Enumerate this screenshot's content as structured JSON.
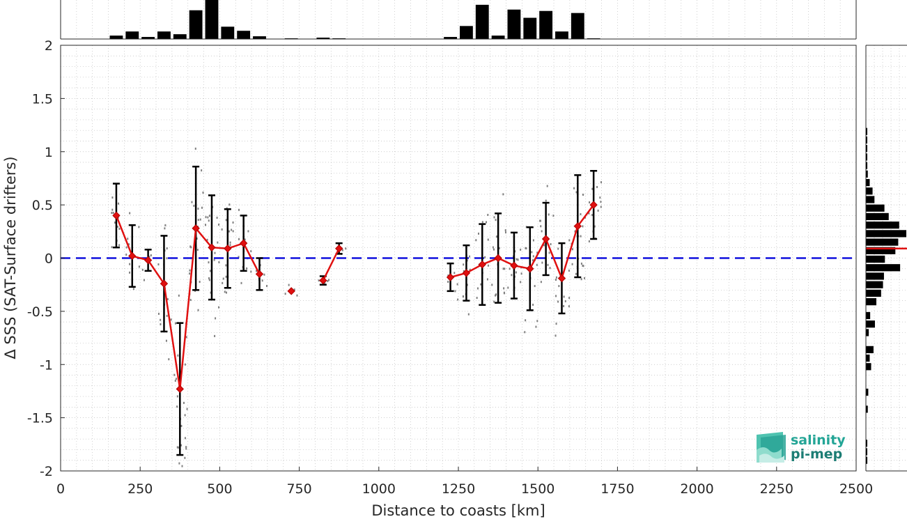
{
  "chart_data": {
    "type": "line",
    "xlabel": "Distance to coasts [km]",
    "ylabel": "Δ SSS (SAT-Surface drifters)",
    "xlim": [
      0,
      2500
    ],
    "ylim": [
      -2,
      2
    ],
    "xticks": [
      0,
      250,
      500,
      750,
      1000,
      1250,
      1500,
      1750,
      2000,
      2250,
      2500
    ],
    "yticks": [
      -2,
      -1.5,
      -1,
      -0.5,
      0,
      0.5,
      1,
      1.5,
      2
    ],
    "grid": true,
    "zero_line": {
      "y": 0,
      "color": "#1010dd",
      "style": "dashed"
    },
    "series": [
      {
        "type": "binned-mean-with-errorbars",
        "color": "#e01010",
        "marker": "diamond",
        "segments": [
          {
            "x": [
              175,
              225,
              275,
              325,
              375,
              425,
              475,
              525,
              575,
              625
            ],
            "y": [
              0.4,
              0.02,
              -0.02,
              -0.24,
              -1.23,
              0.28,
              0.1,
              0.09,
              0.14,
              -0.15
            ],
            "err": [
              0.3,
              0.29,
              0.1,
              0.45,
              0.62,
              0.58,
              0.49,
              0.37,
              0.26,
              0.15
            ]
          },
          {
            "x": [
              725
            ],
            "y": [
              -0.31
            ],
            "err": [
              0.0
            ]
          },
          {
            "x": [
              825,
              875
            ],
            "y": [
              -0.21,
              0.09
            ],
            "err": [
              0.04,
              0.05
            ]
          },
          {
            "x": [
              1225,
              1275,
              1325,
              1375,
              1425,
              1475,
              1525,
              1575,
              1625,
              1675
            ],
            "y": [
              -0.18,
              -0.14,
              -0.06,
              0.0,
              -0.07,
              -0.1,
              0.18,
              -0.19,
              0.3,
              0.5
            ],
            "err": [
              0.13,
              0.26,
              0.38,
              0.42,
              0.31,
              0.39,
              0.34,
              0.33,
              0.48,
              0.32
            ]
          }
        ]
      }
    ],
    "top_histogram": {
      "bin_width": 50,
      "bins": [
        {
          "x": 175,
          "count": 5
        },
        {
          "x": 225,
          "count": 11
        },
        {
          "x": 275,
          "count": 3
        },
        {
          "x": 325,
          "count": 11
        },
        {
          "x": 375,
          "count": 7
        },
        {
          "x": 425,
          "count": 42
        },
        {
          "x": 475,
          "count": 57
        },
        {
          "x": 525,
          "count": 18
        },
        {
          "x": 575,
          "count": 12
        },
        {
          "x": 625,
          "count": 4
        },
        {
          "x": 725,
          "count": 1
        },
        {
          "x": 825,
          "count": 2
        },
        {
          "x": 875,
          "count": 1
        },
        {
          "x": 1225,
          "count": 3
        },
        {
          "x": 1275,
          "count": 19
        },
        {
          "x": 1325,
          "count": 50
        },
        {
          "x": 1375,
          "count": 5
        },
        {
          "x": 1425,
          "count": 43
        },
        {
          "x": 1475,
          "count": 31
        },
        {
          "x": 1525,
          "count": 41
        },
        {
          "x": 1575,
          "count": 11
        },
        {
          "x": 1625,
          "count": 38
        },
        {
          "x": 1675,
          "count": 1
        }
      ]
    },
    "right_histogram": {
      "bin_width": 0.08,
      "bins": [
        {
          "y": -1.9,
          "count": 3
        },
        {
          "y": -1.82,
          "count": 2
        },
        {
          "y": -1.74,
          "count": 1
        },
        {
          "y": -1.42,
          "count": 4
        },
        {
          "y": -1.26,
          "count": 5
        },
        {
          "y": -1.02,
          "count": 11
        },
        {
          "y": -0.94,
          "count": 8
        },
        {
          "y": -0.86,
          "count": 16
        },
        {
          "y": -0.7,
          "count": 6
        },
        {
          "y": -0.62,
          "count": 19
        },
        {
          "y": -0.54,
          "count": 9
        },
        {
          "y": -0.41,
          "count": 22
        },
        {
          "y": -0.33,
          "count": 32
        },
        {
          "y": -0.25,
          "count": 36
        },
        {
          "y": -0.17,
          "count": 38
        },
        {
          "y": -0.09,
          "count": 72
        },
        {
          "y": -0.01,
          "count": 40
        },
        {
          "y": 0.07,
          "count": 62
        },
        {
          "y": 0.15,
          "count": 68
        },
        {
          "y": 0.23,
          "count": 85
        },
        {
          "y": 0.31,
          "count": 70
        },
        {
          "y": 0.39,
          "count": 48
        },
        {
          "y": 0.47,
          "count": 39
        },
        {
          "y": 0.55,
          "count": 18
        },
        {
          "y": 0.63,
          "count": 14
        },
        {
          "y": 0.71,
          "count": 8
        },
        {
          "y": 0.79,
          "count": 4
        },
        {
          "y": 0.87,
          "count": 3
        },
        {
          "y": 0.95,
          "count": 2
        },
        {
          "y": 1.03,
          "count": 2
        },
        {
          "y": 1.11,
          "count": 1
        },
        {
          "y": 1.19,
          "count": 1
        }
      ],
      "median_line": {
        "y": 0.09,
        "color": "#e01010"
      }
    },
    "scatter_color": "#808080"
  },
  "logo": {
    "line1": "salinity",
    "line2": "pi-mep"
  }
}
